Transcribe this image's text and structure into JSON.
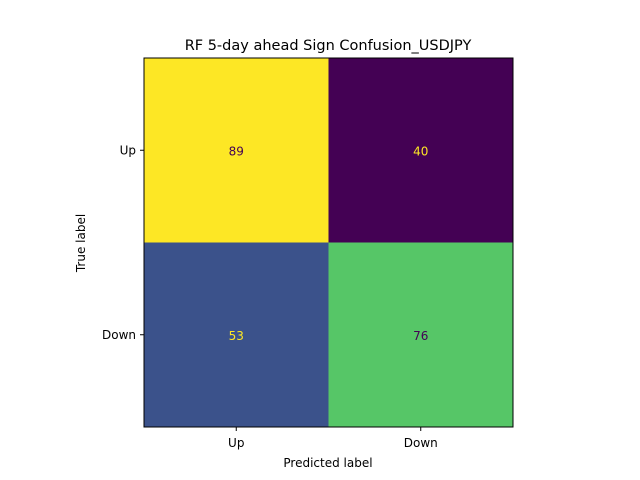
{
  "chart_data": {
    "type": "heatmap",
    "title": "RF 5-day ahead Sign Confusion_USDJPY",
    "xlabel": "Predicted label",
    "ylabel": "True label",
    "x_categories": [
      "Up",
      "Down"
    ],
    "y_categories": [
      "Up",
      "Down"
    ],
    "values": [
      [
        89,
        40
      ],
      [
        53,
        76
      ]
    ],
    "colormap": "viridis",
    "cell_colors": [
      [
        "#fde725",
        "#440154"
      ],
      [
        "#3b528b",
        "#56c667"
      ]
    ],
    "text_colors": [
      [
        "#440154",
        "#fde725"
      ],
      [
        "#fde725",
        "#440154"
      ]
    ],
    "colorbar": false,
    "grid": false
  }
}
